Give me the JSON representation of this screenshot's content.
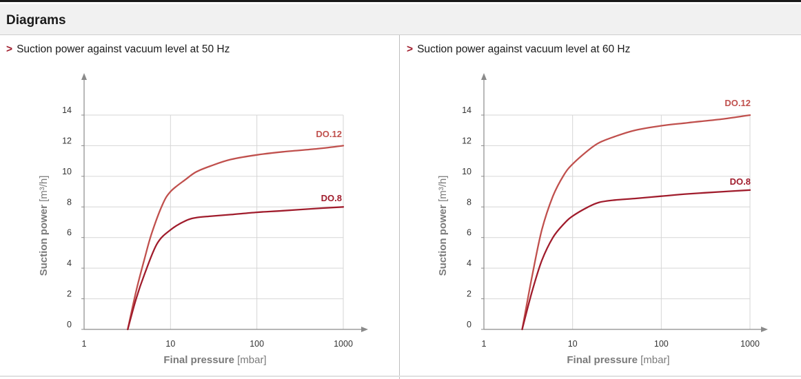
{
  "header": {
    "title": "Diagrams"
  },
  "panels": [
    {
      "arrow": ">",
      "title": "Suction power against vacuum level at 50 Hz"
    },
    {
      "arrow": ">",
      "title": "Suction power against vacuum level at 60 Hz"
    }
  ],
  "colors": {
    "light_series": "#c0504d",
    "dark_series": "#a01c2c",
    "axis": "#8a8a8a",
    "grid": "#d6d6d6",
    "axis_text": "#7a7a7a"
  },
  "chart_data": [
    {
      "type": "line",
      "title": "Suction power against vacuum level at 50 Hz",
      "xlabel": "Final pressure",
      "xunit": "[mbar]",
      "ylabel": "Suction power",
      "yunit": "[m³/h]",
      "xscale": "log",
      "xlim": [
        1,
        1000
      ],
      "ylim": [
        0,
        14
      ],
      "xticks": [
        1,
        10,
        100,
        1000
      ],
      "yticks": [
        0,
        2,
        4,
        6,
        8,
        10,
        12,
        14
      ],
      "grid": true,
      "series": [
        {
          "name": "DO.12",
          "color": "#c0504d",
          "x": [
            3.2,
            4,
            5,
            6,
            8,
            10,
            15,
            20,
            30,
            50,
            100,
            200,
            500,
            1000
          ],
          "y": [
            0,
            2.5,
            4.6,
            6.2,
            8.1,
            9.0,
            9.8,
            10.3,
            10.7,
            11.1,
            11.4,
            11.6,
            11.8,
            12.0
          ]
        },
        {
          "name": "DO.8",
          "color": "#a01c2c",
          "x": [
            3.2,
            4,
            5,
            7,
            10,
            15,
            20,
            30,
            50,
            100,
            200,
            500,
            1000
          ],
          "y": [
            0,
            2.0,
            3.6,
            5.6,
            6.5,
            7.1,
            7.3,
            7.4,
            7.5,
            7.65,
            7.75,
            7.9,
            8.0
          ]
        }
      ]
    },
    {
      "type": "line",
      "title": "Suction power against vacuum level at 60 Hz",
      "xlabel": "Final pressure",
      "xunit": "[mbar]",
      "ylabel": "Suction power",
      "yunit": "[m³/h]",
      "xscale": "log",
      "xlim": [
        1,
        1000
      ],
      "ylim": [
        0,
        14
      ],
      "xticks": [
        1,
        10,
        100,
        1000
      ],
      "yticks": [
        0,
        2,
        4,
        6,
        8,
        10,
        12,
        14
      ],
      "grid": true,
      "series": [
        {
          "name": "DO.12",
          "color": "#c0504d",
          "x": [
            2.7,
            3.5,
            4.5,
            6,
            8,
            10,
            15,
            20,
            30,
            50,
            100,
            200,
            500,
            1000
          ],
          "y": [
            0,
            3.5,
            6.5,
            8.7,
            10.1,
            10.8,
            11.7,
            12.2,
            12.6,
            13.0,
            13.3,
            13.5,
            13.75,
            14.0
          ]
        },
        {
          "name": "DO.8",
          "color": "#a01c2c",
          "x": [
            2.7,
            3.5,
            4.5,
            6,
            8,
            10,
            15,
            20,
            30,
            50,
            100,
            200,
            500,
            1000
          ],
          "y": [
            0,
            2.5,
            4.5,
            6.0,
            6.9,
            7.4,
            8.0,
            8.3,
            8.45,
            8.55,
            8.7,
            8.85,
            9.0,
            9.1
          ]
        }
      ]
    }
  ]
}
